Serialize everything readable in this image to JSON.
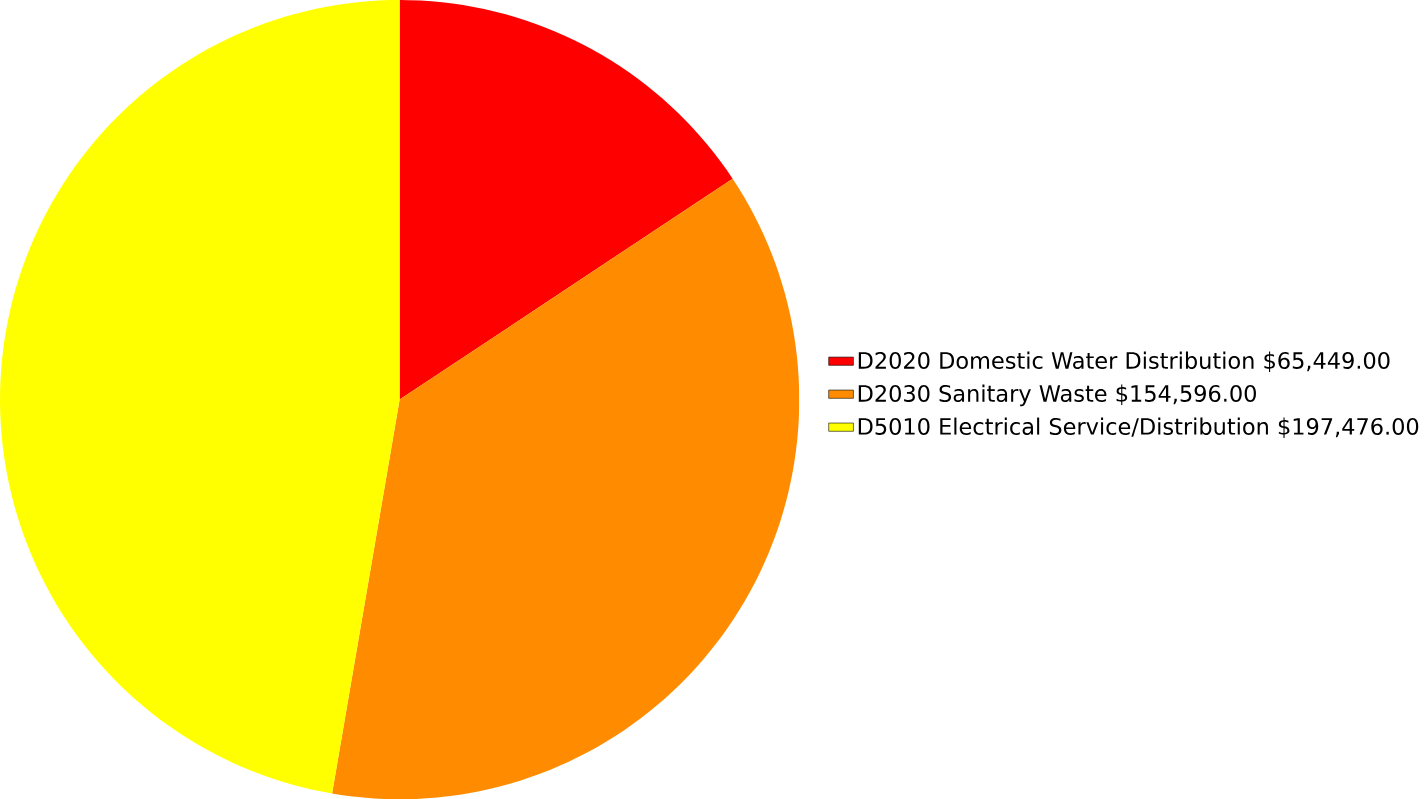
{
  "chart_data": {
    "type": "pie",
    "categories": [
      "D2020 Domestic Water Distribution",
      "D2030 Sanitary Waste",
      "D5010 Electrical Service/Distribution"
    ],
    "values": [
      65449,
      154596,
      197476
    ],
    "value_labels": [
      "$65,449.00",
      "$154,596.00",
      "$197,476.00"
    ],
    "colors": [
      "#ff0000",
      "#ff8c00",
      "#ffff00"
    ],
    "legend": "right"
  }
}
